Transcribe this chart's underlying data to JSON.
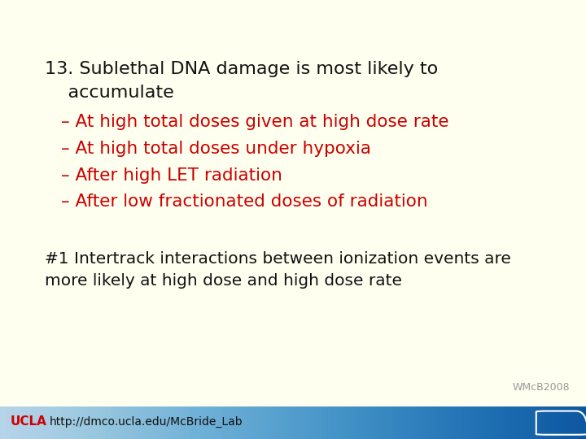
{
  "background_color": "#FFFFF0",
  "title_line1": "13. Sublethal DNA damage is most likely to",
  "title_line2": "    accumulate",
  "title_color": "#111111",
  "bullets": [
    "– At high total doses given at high dose rate",
    "– At high total doses under hypoxia",
    "– After high LET radiation",
    "– After low fractionated doses of radiation"
  ],
  "bullet_color": "#CC0000",
  "footnote_line1": "#1 Intertrack interactions between ionization events are",
  "footnote_line2": "more likely at high dose and high dose rate",
  "footnote_color": "#111111",
  "watermark": "WMcB2008",
  "watermark_color": "#999999",
  "footer_text": "http://dmco.ucla.edu/McBride_Lab",
  "footer_text_color": "#111111",
  "ucla_text": "UCLA",
  "ucla_color": "#CC0000",
  "title_fontsize": 16,
  "bullet_fontsize": 15.5,
  "footnote_fontsize": 14.5,
  "footer_fontsize": 10,
  "watermark_fontsize": 9,
  "ucla_fontsize": 11
}
